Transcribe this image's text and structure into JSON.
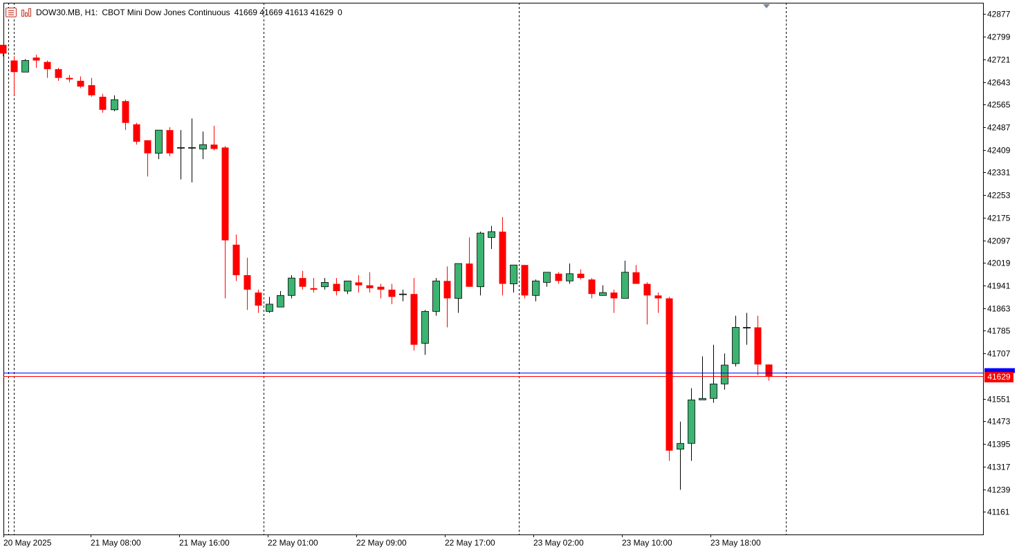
{
  "header": {
    "symbol": "DOW30.MB, H1:",
    "description": "CBOT Mini Dow Jones Continuous",
    "ohlc": "41669 41669 41613 41629",
    "extra": "0",
    "icons": [
      "chart-list-icon",
      "chart-bars-icon"
    ]
  },
  "chart_data": {
    "type": "candlestick",
    "ylim": [
      41083,
      42916
    ],
    "y_ticks": [
      "42877",
      "42799",
      "42721",
      "42643",
      "42565",
      "42487",
      "42409",
      "42331",
      "42253",
      "42175",
      "42097",
      "42019",
      "41941",
      "41863",
      "41785",
      "41707",
      "41551",
      "41473",
      "41395",
      "41317",
      "41239",
      "41161"
    ],
    "x_labels": [
      "20 May 2025",
      "21 May 08:00",
      "21 May 16:00",
      "22 May 01:00",
      "22 May 09:00",
      "22 May 17:00",
      "23 May 02:00",
      "23 May 10:00",
      "23 May 18:00"
    ],
    "day_separators_after_candle": [
      0,
      23,
      46,
      70
    ],
    "current_price": "41629",
    "bid_line_price": 41640,
    "colors": {
      "up": "#3cb371",
      "down": "#ff0000",
      "bid_line": "#0000ff",
      "ask_line": "#ff0000",
      "grid": "#000000"
    },
    "candles": [
      [
        42771,
        42771,
        42731,
        42741
      ],
      [
        42717,
        42732,
        42597,
        42677
      ],
      [
        42677,
        42722,
        42677,
        42717
      ],
      [
        42727,
        42737,
        42692,
        42717
      ],
      [
        42712,
        42717,
        42657,
        42687
      ],
      [
        42687,
        42692,
        42647,
        42657
      ],
      [
        42657,
        42667,
        42642,
        42652
      ],
      [
        42647,
        42662,
        42622,
        42627
      ],
      [
        42632,
        42657,
        42592,
        42597
      ],
      [
        42592,
        42602,
        42537,
        42547
      ],
      [
        42547,
        42597,
        42542,
        42582
      ],
      [
        42577,
        42582,
        42477,
        42502
      ],
      [
        42497,
        42502,
        42427,
        42437
      ],
      [
        42442,
        42442,
        42317,
        42397
      ],
      [
        42397,
        42477,
        42377,
        42477
      ],
      [
        42477,
        42487,
        42387,
        42397
      ],
      [
        42417,
        42477,
        42307,
        42417
      ],
      [
        42417,
        42517,
        42297,
        42417
      ],
      [
        42412,
        42472,
        42377,
        42427
      ],
      [
        42427,
        42492,
        42407,
        42412
      ],
      [
        42417,
        42422,
        41897,
        42097
      ],
      [
        42082,
        42117,
        41957,
        41977
      ],
      [
        41977,
        42037,
        41857,
        41927
      ],
      [
        41917,
        41927,
        41847,
        41872
      ],
      [
        41852,
        41902,
        41847,
        41877
      ],
      [
        41867,
        41922,
        41867,
        41907
      ],
      [
        41907,
        41977,
        41897,
        41967
      ],
      [
        41967,
        41992,
        41927,
        41937
      ],
      [
        41932,
        41967,
        41917,
        41927
      ],
      [
        41937,
        41967,
        41927,
        41952
      ],
      [
        41947,
        41967,
        41907,
        41922
      ],
      [
        41922,
        41957,
        41912,
        41957
      ],
      [
        41952,
        41977,
        41917,
        41942
      ],
      [
        41942,
        41987,
        41917,
        41932
      ],
      [
        41937,
        41947,
        41897,
        41927
      ],
      [
        41927,
        41947,
        41877,
        41902
      ],
      [
        41912,
        41927,
        41887,
        41912
      ],
      [
        41912,
        41967,
        41717,
        41737
      ],
      [
        41742,
        41857,
        41702,
        41852
      ],
      [
        41852,
        41967,
        41837,
        41957
      ],
      [
        41957,
        42007,
        41797,
        41897
      ],
      [
        41897,
        42017,
        41847,
        42017
      ],
      [
        42017,
        42107,
        41937,
        41937
      ],
      [
        41937,
        42127,
        41907,
        42122
      ],
      [
        42107,
        42147,
        42067,
        42127
      ],
      [
        42127,
        42177,
        41907,
        41947
      ],
      [
        41947,
        42012,
        41917,
        42012
      ],
      [
        42012,
        42012,
        41897,
        41907
      ],
      [
        41907,
        41962,
        41887,
        41957
      ],
      [
        41952,
        41982,
        41937,
        41987
      ],
      [
        41982,
        41987,
        41947,
        41957
      ],
      [
        41957,
        42017,
        41947,
        41982
      ],
      [
        41982,
        41997,
        41962,
        41967
      ],
      [
        41962,
        41967,
        41897,
        41912
      ],
      [
        41907,
        41942,
        41907,
        41917
      ],
      [
        41917,
        41927,
        41847,
        41897
      ],
      [
        41897,
        42027,
        41897,
        41987
      ],
      [
        41987,
        42012,
        41947,
        41947
      ],
      [
        41947,
        41952,
        41807,
        41907
      ],
      [
        41907,
        41917,
        41847,
        41897
      ],
      [
        41897,
        41902,
        41337,
        41372
      ],
      [
        41377,
        41472,
        41237,
        41397
      ],
      [
        41397,
        41587,
        41337,
        41547
      ],
      [
        41547,
        41697,
        41547,
        41552
      ],
      [
        41552,
        41737,
        41537,
        41602
      ],
      [
        41602,
        41707,
        41582,
        41667
      ],
      [
        41672,
        41837,
        41662,
        41797
      ],
      [
        41797,
        41847,
        41737,
        41797
      ],
      [
        41797,
        41837,
        41632,
        41669
      ],
      [
        41669,
        41669,
        41613,
        41629
      ]
    ]
  }
}
